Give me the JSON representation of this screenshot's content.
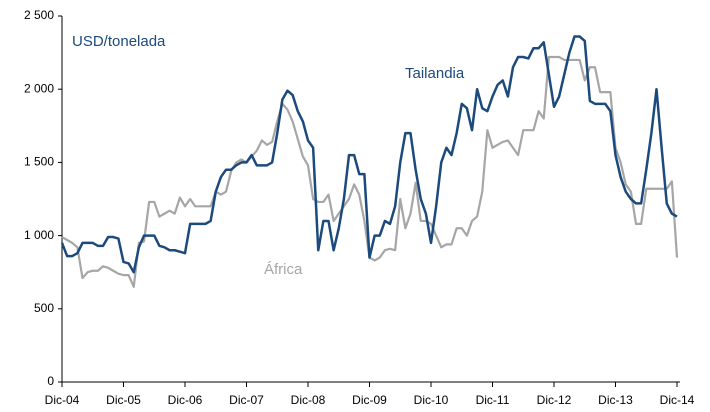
{
  "chart_data": {
    "type": "line",
    "y_label": "USD/tonelada",
    "categories": [
      "Dic-04",
      null,
      null,
      null,
      null,
      null,
      null,
      null,
      null,
      null,
      null,
      null,
      "Dic-05",
      null,
      null,
      null,
      null,
      null,
      null,
      null,
      null,
      null,
      null,
      null,
      "Dic-06",
      null,
      null,
      null,
      null,
      null,
      null,
      null,
      null,
      null,
      null,
      null,
      "Dic-07",
      null,
      null,
      null,
      null,
      null,
      null,
      null,
      null,
      null,
      null,
      null,
      "Dic-08",
      null,
      null,
      null,
      null,
      null,
      null,
      null,
      null,
      null,
      null,
      null,
      "Dic-09",
      null,
      null,
      null,
      null,
      null,
      null,
      null,
      null,
      null,
      null,
      null,
      "Dic-10",
      null,
      null,
      null,
      null,
      null,
      null,
      null,
      null,
      null,
      null,
      null,
      "Dic-11",
      null,
      null,
      null,
      null,
      null,
      null,
      null,
      null,
      null,
      null,
      null,
      "Dic-12",
      null,
      null,
      null,
      null,
      null,
      null,
      null,
      null,
      null,
      null,
      null,
      "Dic-13",
      null,
      null,
      null,
      null,
      null,
      null,
      null,
      null,
      null,
      null,
      null,
      "Dic-14"
    ],
    "series": [
      {
        "name": "Tailandia",
        "color": "#1c4a7c",
        "values": [
          950,
          860,
          860,
          880,
          950,
          950,
          950,
          930,
          930,
          990,
          990,
          980,
          820,
          810,
          750,
          920,
          1000,
          1000,
          1000,
          930,
          920,
          900,
          900,
          890,
          880,
          1080,
          1080,
          1080,
          1080,
          1100,
          1300,
          1400,
          1450,
          1450,
          1480,
          1500,
          1500,
          1550,
          1480,
          1480,
          1480,
          1500,
          1700,
          1930,
          1990,
          1960,
          1850,
          1780,
          1650,
          1600,
          900,
          1100,
          1100,
          900,
          1050,
          1250,
          1550,
          1550,
          1420,
          1420,
          850,
          1000,
          1000,
          1100,
          1080,
          1200,
          1500,
          1700,
          1700,
          1450,
          1250,
          1150,
          950,
          1200,
          1500,
          1600,
          1550,
          1700,
          1900,
          1870,
          1720,
          2000,
          1870,
          1850,
          1950,
          2030,
          2060,
          1950,
          2150,
          2220,
          2220,
          2210,
          2280,
          2280,
          2320,
          2100,
          1880,
          1950,
          2100,
          2250,
          2360,
          2360,
          2330,
          1920,
          1900,
          1900,
          1900,
          1850,
          1550,
          1400,
          1300,
          1250,
          1220,
          1220,
          1450,
          1700,
          2000,
          1600,
          1220,
          1150,
          1130
        ]
      },
      {
        "name": "África",
        "color": "#a6a6a6",
        "values": [
          990,
          970,
          950,
          920,
          710,
          750,
          760,
          760,
          790,
          780,
          760,
          740,
          730,
          730,
          650,
          950,
          960,
          1230,
          1230,
          1130,
          1150,
          1170,
          1150,
          1260,
          1200,
          1250,
          1200,
          1200,
          1200,
          1200,
          1300,
          1280,
          1300,
          1440,
          1500,
          1520,
          1500,
          1540,
          1580,
          1650,
          1620,
          1640,
          1780,
          1900,
          1860,
          1780,
          1660,
          1540,
          1480,
          1250,
          1230,
          1230,
          1280,
          1100,
          1150,
          1200,
          1250,
          1350,
          1280,
          1100,
          850,
          830,
          850,
          900,
          910,
          900,
          1250,
          1050,
          1150,
          1360,
          1100,
          1100,
          1080,
          1000,
          920,
          940,
          940,
          1050,
          1050,
          1000,
          1100,
          1130,
          1300,
          1720,
          1600,
          1620,
          1640,
          1650,
          1600,
          1550,
          1720,
          1720,
          1720,
          1850,
          1800,
          2220,
          2220,
          2220,
          2200,
          2200,
          2200,
          2200,
          2060,
          2150,
          2150,
          1980,
          1980,
          1980,
          1600,
          1500,
          1350,
          1300,
          1080,
          1080,
          1320,
          1320,
          1320,
          1320,
          1320,
          1370,
          850
        ]
      }
    ],
    "ylim": [
      0,
      2500
    ],
    "yticks": [
      0,
      500,
      {
        "value": 1000,
        "label": "1 000"
      },
      {
        "value": 1500,
        "label": "1 500"
      },
      {
        "value": 2000,
        "label": "2 000"
      },
      {
        "value": 2500,
        "label": "2 500"
      }
    ],
    "grid": false
  }
}
